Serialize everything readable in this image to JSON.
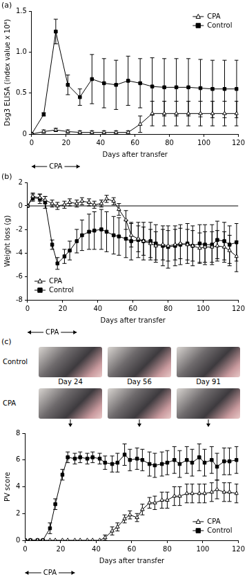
{
  "chart_data": [
    {
      "type": "line",
      "panel_label": "(a)",
      "xlabel": "Days after transfer",
      "ylabel": "Dsg3 ELISA (index value x 10⁶)",
      "x": [
        0,
        7,
        14,
        21,
        28,
        35,
        42,
        49,
        56,
        63,
        70,
        77,
        84,
        91,
        98,
        105,
        112,
        119
      ],
      "series": [
        {
          "name": "CPA",
          "color": "#000000",
          "marker": "open triangle",
          "values": [
            0,
            0.03,
            0.05,
            0.03,
            0.02,
            0.02,
            0.02,
            0.02,
            0.02,
            0.12,
            0.25,
            0.25,
            0.25,
            0.25,
            0.25,
            0.25,
            0.25,
            0.25
          ],
          "errors": [
            0,
            0.02,
            0.02,
            0.02,
            0.02,
            0.02,
            0.02,
            0.02,
            0.02,
            0.1,
            0.15,
            0.15,
            0.15,
            0.15,
            0.15,
            0.15,
            0.15,
            0.15
          ]
        },
        {
          "name": "Control",
          "color": "#000000",
          "marker": "square",
          "values": [
            0,
            0.24,
            1.25,
            0.6,
            0.45,
            0.67,
            0.62,
            0.6,
            0.65,
            0.62,
            0.58,
            0.57,
            0.57,
            0.57,
            0.56,
            0.55,
            0.55,
            0.55
          ],
          "errors": [
            0,
            0.02,
            0.15,
            0.12,
            0.1,
            0.3,
            0.3,
            0.3,
            0.3,
            0.3,
            0.35,
            0.35,
            0.35,
            0.35,
            0.35,
            0.35,
            0.35,
            0.35
          ]
        }
      ],
      "xlim": [
        0,
        120
      ],
      "xticks": [
        0,
        20,
        40,
        60,
        80,
        100,
        120
      ],
      "ylim": [
        0,
        1.5
      ],
      "yticks": [
        0,
        0.5,
        {
          "value": 1,
          "label": "1.0"
        },
        1.5
      ],
      "grid": false,
      "legend": "upper right",
      "annotation": {
        "text": "CPA",
        "from": 0,
        "to": 28
      }
    },
    {
      "type": "line",
      "panel_label": "(b)",
      "xlabel": "Days after transfer",
      "ylabel": "Weight loss (g)",
      "x": [
        0,
        3,
        7,
        10,
        14,
        17,
        21,
        24,
        28,
        31,
        35,
        38,
        42,
        45,
        49,
        52,
        56,
        59,
        63,
        66,
        70,
        73,
        77,
        80,
        84,
        87,
        91,
        94,
        98,
        101,
        105,
        108,
        112,
        115,
        119
      ],
      "series": [
        {
          "name": "CPA",
          "color": "#000000",
          "marker": "open triangle",
          "values": [
            0,
            0.8,
            0.7,
            0.5,
            0.2,
            0,
            0.1,
            0.3,
            0.2,
            0.4,
            0.3,
            0.1,
            0.2,
            0.6,
            0.4,
            -0.3,
            -1.2,
            -2.5,
            -2.8,
            -3.0,
            -3.2,
            -3.4,
            -3.3,
            -3.4,
            -3.3,
            -3.2,
            -3.3,
            -3.4,
            -3.6,
            -3.5,
            -3.5,
            -3.4,
            -3.5,
            -3.8,
            -4.3
          ],
          "errors": [
            0,
            0.3,
            0.3,
            0.3,
            0.3,
            0.3,
            0.3,
            0.3,
            0.3,
            0.3,
            0.3,
            0.3,
            0.3,
            0.3,
            0.3,
            0.5,
            0.8,
            1.0,
            1.1,
            1.2,
            1.2,
            1.2,
            1.3,
            1.3,
            1.3,
            1.3,
            1.3,
            1.3,
            1.3,
            1.3,
            1.3,
            1.3,
            1.3,
            1.3,
            1.3
          ]
        },
        {
          "name": "Control",
          "color": "#000000",
          "marker": "square",
          "values": [
            0,
            0.7,
            0.6,
            0.3,
            -3.3,
            -4.9,
            -4.3,
            -3.8,
            -3.0,
            -2.5,
            -2.2,
            -2.1,
            -2.0,
            -2.2,
            -2.5,
            -2.6,
            -2.8,
            -3.0,
            -2.9,
            -3.0,
            -3.0,
            -3.2,
            -3.4,
            -3.5,
            -3.4,
            -3.3,
            -3.2,
            -3.4,
            -3.2,
            -3.3,
            -3.3,
            -2.9,
            -3.0,
            -3.3,
            -3.1
          ],
          "errors": [
            0,
            0.3,
            0.4,
            0.5,
            0.4,
            0.5,
            0.6,
            0.8,
            1.0,
            1.3,
            1.5,
            1.6,
            1.7,
            1.7,
            1.6,
            1.6,
            1.6,
            1.6,
            1.5,
            1.6,
            1.6,
            1.6,
            1.7,
            1.8,
            1.7,
            1.7,
            1.7,
            1.7,
            1.6,
            1.7,
            1.7,
            1.6,
            1.6,
            1.6,
            1.6
          ]
        }
      ],
      "xlim": [
        0,
        120
      ],
      "xticks": [
        0,
        20,
        40,
        60,
        80,
        100,
        120
      ],
      "ylim": [
        -8,
        2
      ],
      "yticks": [
        -8,
        -6,
        -4,
        -2,
        0,
        2
      ],
      "grid": false,
      "legend": "lower left",
      "annotation": {
        "text": "CPA",
        "from": 0,
        "to": 28
      }
    },
    {
      "type": "line",
      "xlabel": "Days after transfer",
      "ylabel": "PV score",
      "x": [
        0,
        3,
        7,
        10,
        14,
        17,
        21,
        24,
        28,
        31,
        35,
        38,
        42,
        45,
        49,
        52,
        56,
        59,
        63,
        66,
        70,
        73,
        77,
        80,
        84,
        87,
        91,
        94,
        98,
        101,
        105,
        108,
        112,
        115,
        119
      ],
      "series": [
        {
          "name": "CPA",
          "color": "#000000",
          "marker": "open triangle",
          "values": [
            0,
            0,
            0,
            0,
            0,
            0,
            0,
            0,
            0,
            0,
            0,
            0,
            0,
            0.2,
            0.7,
            1.0,
            1.6,
            1.9,
            1.7,
            2.3,
            2.8,
            2.8,
            3.0,
            3.0,
            3.3,
            3.3,
            3.5,
            3.5,
            3.5,
            3.5,
            3.6,
            3.8,
            3.6,
            3.6,
            3.5
          ],
          "errors": [
            0,
            0,
            0,
            0,
            0,
            0,
            0,
            0,
            0,
            0,
            0,
            0,
            0,
            0.2,
            0.3,
            0.3,
            0.3,
            0.3,
            0.3,
            0.4,
            0.4,
            0.5,
            0.6,
            0.6,
            0.7,
            0.7,
            0.7,
            0.7,
            0.7,
            0.7,
            0.7,
            0.7,
            0.7,
            0.7,
            0.7
          ]
        },
        {
          "name": "Control",
          "color": "#000000",
          "marker": "square",
          "values": [
            0,
            0,
            0,
            0,
            0.9,
            2.7,
            4.9,
            6.2,
            6.1,
            6.2,
            6.1,
            6.2,
            6.1,
            5.8,
            5.7,
            5.8,
            6.4,
            6.0,
            6.1,
            6.0,
            5.7,
            5.6,
            5.7,
            5.8,
            6.0,
            5.7,
            6.0,
            5.8,
            6.2,
            5.8,
            6.0,
            5.5,
            5.9,
            5.9,
            6.0
          ],
          "errors": [
            0,
            0,
            0,
            0,
            0.4,
            0.4,
            0.4,
            0.4,
            0.4,
            0.4,
            0.4,
            0.4,
            0.4,
            0.5,
            0.6,
            0.7,
            0.8,
            0.8,
            0.8,
            0.8,
            0.9,
            0.9,
            0.9,
            0.9,
            1.0,
            1.0,
            1.0,
            1.0,
            1.0,
            1.0,
            1.0,
            1.0,
            1.0,
            1.0,
            1.0
          ]
        }
      ],
      "xlim": [
        0,
        120
      ],
      "xticks": [
        0,
        20,
        40,
        60,
        80,
        100,
        120
      ],
      "ylim": [
        0,
        8
      ],
      "yticks": [
        0,
        2,
        4,
        6,
        8
      ],
      "grid": false,
      "legend": "lower right",
      "annotation": {
        "text": "CPA",
        "from": 0,
        "to": 28
      }
    }
  ],
  "photos": {
    "panel_label": "(c)",
    "rows": [
      "Control",
      "CPA"
    ],
    "captions": [
      "Day 24",
      "Day 56",
      "Day 91"
    ]
  }
}
